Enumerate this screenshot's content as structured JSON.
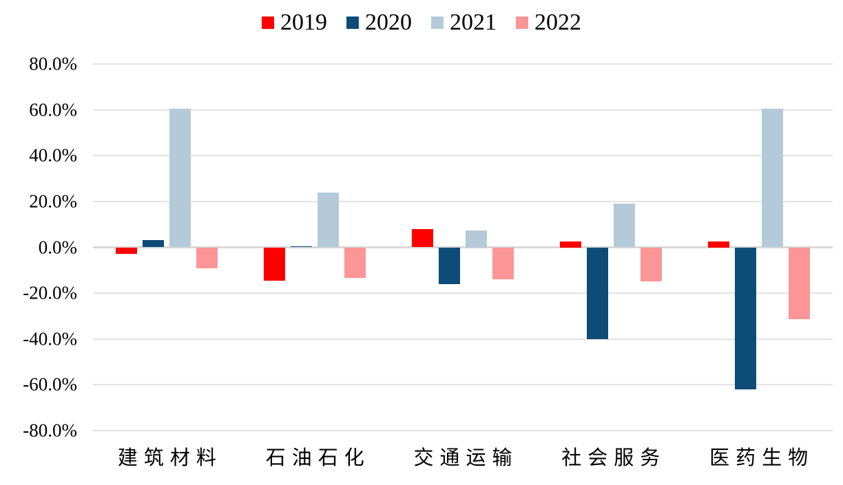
{
  "chart_data": {
    "type": "bar",
    "title": "",
    "xlabel": "",
    "ylabel": "",
    "categories": [
      "建筑材料",
      "石油石化",
      "交通运输",
      "社会服务",
      "医药生物"
    ],
    "series": [
      {
        "name": "2019",
        "color": "#ff0000",
        "values": [
          -3.0,
          -14.5,
          8.0,
          2.5,
          2.5
        ]
      },
      {
        "name": "2020",
        "color": "#0d4c78",
        "values": [
          3.3,
          0.6,
          -16.0,
          -40.0,
          -62.0
        ]
      },
      {
        "name": "2021",
        "color": "#b5cad9",
        "values": [
          60.4,
          24.0,
          7.5,
          19.0,
          60.5
        ]
      },
      {
        "name": "2022",
        "color": "#fc9596",
        "values": [
          -9.3,
          -13.5,
          -14.0,
          -15.0,
          -31.5
        ]
      }
    ],
    "ylim": [
      -80,
      80
    ],
    "ytick_step": 20,
    "yticks": [
      "80.0%",
      "60.0%",
      "40.0%",
      "20.0%",
      "0.0%",
      "-20.0%",
      "-40.0%",
      "-60.0%",
      "-80.0%"
    ],
    "zero_tick_index": 4,
    "legend_position": "top",
    "grid": true,
    "unit": "percent"
  },
  "colors": {
    "background": "#ffffff",
    "gridline": "#e3e3e3",
    "zeroline": "#d8d8d8",
    "text": "#000000"
  }
}
